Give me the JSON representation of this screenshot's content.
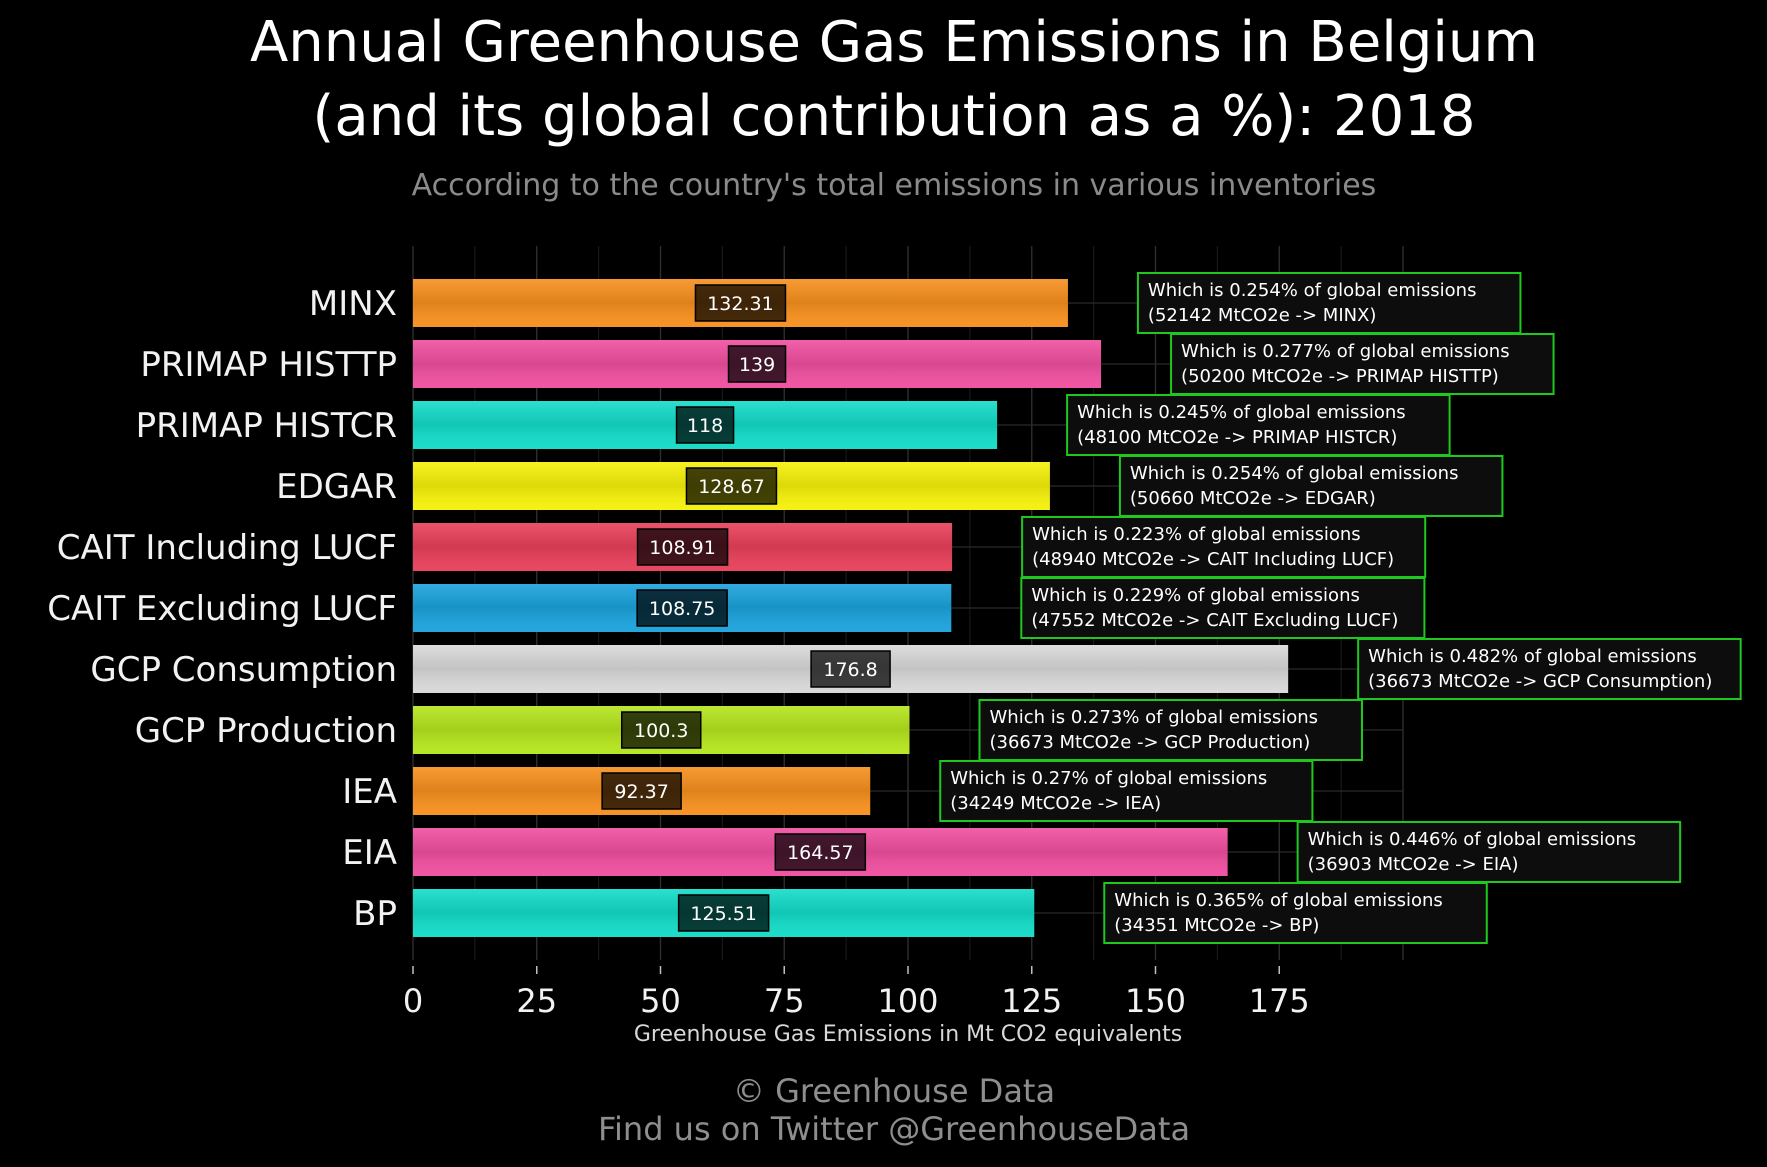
{
  "title_line1": "Annual Greenhouse Gas Emissions in Belgium",
  "title_line2": "(and its global contribution as a %): 2018",
  "subtitle": "According to the country's total emissions in various inventories",
  "footer_line1": "© Greenhouse Data",
  "footer_line2": "Find us on Twitter @GreenhouseData",
  "chart_data": {
    "type": "bar",
    "orientation": "horizontal",
    "xlabel": "Greenhouse Gas Emissions in Mt CO2 equivalents",
    "xlim": [
      0,
      200
    ],
    "xticks": [
      0,
      25,
      50,
      75,
      100,
      125,
      150,
      175
    ],
    "grid": true,
    "categories": [
      "MINX",
      "PRIMAP HISTTP",
      "PRIMAP HISTCR",
      "EDGAR",
      "CAIT Including LUCF",
      "CAIT Excluding LUCF",
      "GCP Consumption",
      "GCP Production",
      "IEA",
      "EIA",
      "BP"
    ],
    "values": [
      132.31,
      139,
      118,
      128.67,
      108.91,
      108.75,
      176.8,
      100.3,
      92.37,
      164.57,
      125.51
    ],
    "value_labels": [
      "132.31",
      "139",
      "118",
      "128.67",
      "108.91",
      "108.75",
      "176.8",
      "100.3",
      "92.37",
      "164.57",
      "125.51"
    ],
    "colors": [
      "#f7901e",
      "#f04fa0",
      "#13dcc8",
      "#f6f10a",
      "#e8405a",
      "#1ba3dc",
      "#d9d9d9",
      "#b5e61d",
      "#f7901e",
      "#f04fa0",
      "#13dcc8"
    ],
    "annotations": [
      {
        "line1": "Which is 0.254% of global emissions",
        "line2": "(52142 MtCO2e -> MINX)"
      },
      {
        "line1": "Which is 0.277% of global emissions",
        "line2": "(50200 MtCO2e -> PRIMAP HISTTP)"
      },
      {
        "line1": "Which is 0.245% of global emissions",
        "line2": "(48100 MtCO2e -> PRIMAP HISTCR)"
      },
      {
        "line1": "Which is 0.254% of global emissions",
        "line2": "(50660 MtCO2e -> EDGAR)"
      },
      {
        "line1": "Which is 0.223% of global emissions",
        "line2": "(48940 MtCO2e -> CAIT Including LUCF)"
      },
      {
        "line1": "Which is 0.229% of global emissions",
        "line2": "(47552 MtCO2e -> CAIT Excluding LUCF)"
      },
      {
        "line1": "Which is 0.482% of global emissions",
        "line2": "(36673 MtCO2e -> GCP Consumption)"
      },
      {
        "line1": "Which is 0.273% of global emissions",
        "line2": "(36673 MtCO2e -> GCP Production)"
      },
      {
        "line1": "Which is 0.27% of global emissions",
        "line2": "(34249 MtCO2e -> IEA)"
      },
      {
        "line1": "Which is 0.446% of global emissions",
        "line2": "(36903 MtCO2e -> EIA)"
      },
      {
        "line1": "Which is 0.365% of global emissions",
        "line2": "(34351 MtCO2e -> BP)"
      }
    ],
    "annotation_border_color": "#1ec81e",
    "connector_color": "#1ec81e"
  }
}
